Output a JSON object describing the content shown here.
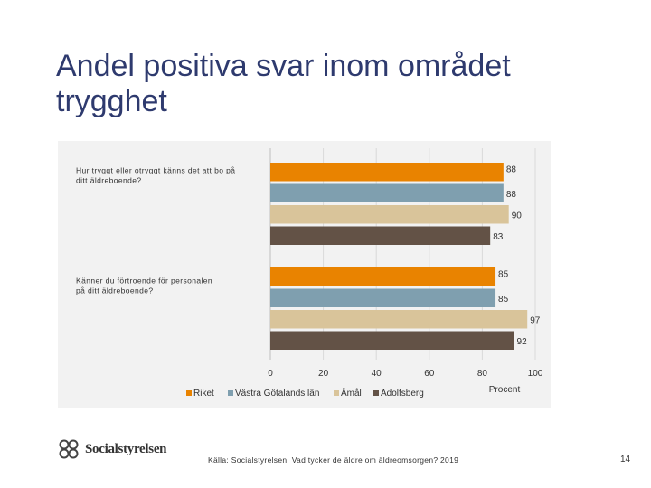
{
  "page": {
    "title": "Andel positiva svar inom området trygghet",
    "source": "Källa: Socialstyrelsen, Vad tycker de äldre om äldreomsorgen? 2019",
    "page_number": "14",
    "logo_text": "Socialstyrelsen"
  },
  "colors": {
    "Riket": "#e98300",
    "Västra Götalands län": "#7f9faf",
    "Åmål": "#d9c49a",
    "Adolfsberg": "#635246"
  },
  "chart_data": {
    "type": "bar",
    "orientation": "horizontal",
    "categories": [
      "Hur tryggt eller otryggt känns det att bo på ditt äldreboende?",
      "Känner du förtroende för personalen på ditt äldreboende?"
    ],
    "category_lines": [
      [
        "Hur tryggt eller otryggt känns det att bo på",
        "ditt äldreboende?"
      ],
      [
        "Känner du förtroende för personalen",
        "på ditt äldreboende?"
      ]
    ],
    "series": [
      {
        "name": "Riket",
        "values": [
          88,
          85
        ]
      },
      {
        "name": "Västra Götalands län",
        "values": [
          88,
          85
        ]
      },
      {
        "name": "Åmål",
        "values": [
          90,
          97
        ]
      },
      {
        "name": "Adolfsberg",
        "values": [
          83,
          92
        ]
      }
    ],
    "xlim": [
      0,
      100
    ],
    "xticks": [
      0,
      20,
      40,
      60,
      80,
      100
    ],
    "xlabel": "Procent",
    "legend_position": "bottom"
  }
}
